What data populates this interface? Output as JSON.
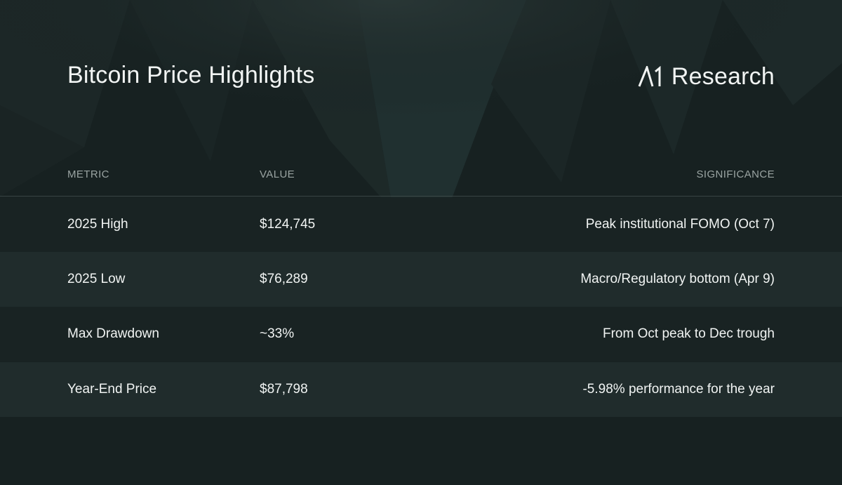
{
  "header": {
    "title": "Bitcoin Price Highlights",
    "brand": "Research"
  },
  "chart_data": {
    "type": "table",
    "columns": [
      "METRIC",
      "VALUE",
      "SIGNIFICANCE"
    ],
    "rows": [
      [
        "2025 High",
        "$124,745",
        "Peak institutional FOMO (Oct 7)"
      ],
      [
        "2025 Low",
        "$76,289",
        "Macro/Regulatory bottom (Apr 9)"
      ],
      [
        "Max Drawdown",
        "~33%",
        "From Oct peak to Dec trough"
      ],
      [
        "Year-End Price",
        "$87,798",
        "-5.98% performance for the year"
      ]
    ]
  },
  "colors": {
    "background": "#172121",
    "row_alt": "#202c2c",
    "text": "#f1f4f3",
    "header_text": "#9aa4a2",
    "divider": "#3a4645"
  }
}
